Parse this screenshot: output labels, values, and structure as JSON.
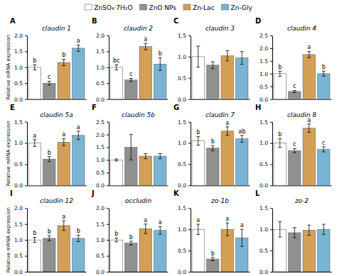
{
  "chart_data": [
    {
      "type": "bar",
      "title": "claudin 1",
      "label": "A",
      "ylabel": "Relative mRNA expression",
      "legend": "top",
      "ylim": [
        0,
        2.0
      ],
      "yticks": [
        {
          "value": 0.0,
          "label": "0.0"
        },
        0.5,
        {
          "value": 1.0,
          "label": "1.0"
        },
        1.5,
        {
          "value": 2.0,
          "label": "2.0"
        }
      ],
      "tick_labels": "y",
      "series": [
        {
          "name": "ZnSO₄⋅7H₂O",
          "color": "#ffffff",
          "values": [
            1.0
          ],
          "errors": [
            0.08
          ],
          "annotations": [
            "b"
          ]
        },
        {
          "name": "ZnO NPs",
          "color": "#909090",
          "values": [
            0.5
          ],
          "errors": [
            0.06
          ],
          "annotations": [
            "c"
          ]
        },
        {
          "name": "Zn-Lac",
          "color": "#d4a056",
          "values": [
            1.15
          ],
          "errors": [
            0.1
          ],
          "annotations": [
            "b"
          ]
        },
        {
          "name": "Zn-Gly",
          "color": "#7ab4d4",
          "values": [
            1.6
          ],
          "errors": [
            0.1
          ],
          "annotations": [
            "a"
          ]
        }
      ]
    },
    {
      "type": "bar",
      "title": "claudin 2",
      "label": "B",
      "ylim": [
        0,
        2.0
      ],
      "yticks": [
        {
          "value": 0.0,
          "label": "0.0"
        },
        0.5,
        {
          "value": 1.0,
          "label": "1.0"
        },
        1.5,
        {
          "value": 2.0,
          "label": "2.0"
        }
      ],
      "tick_labels": "y",
      "series": [
        {
          "name": "ZnSO₄⋅7H₂O",
          "color": "#ffffff",
          "values": [
            1.0
          ],
          "errors": [
            0.08
          ],
          "annotations": [
            "bc"
          ]
        },
        {
          "name": "ZnO NPs",
          "color": "#909090",
          "values": [
            0.6
          ],
          "errors": [
            0.05
          ],
          "annotations": [
            "c"
          ]
        },
        {
          "name": "Zn-Lac",
          "color": "#d4a056",
          "values": [
            1.65
          ],
          "errors": [
            0.1
          ],
          "annotations": [
            "a"
          ]
        },
        {
          "name": "Zn-Gly",
          "color": "#7ab4d4",
          "values": [
            1.1
          ],
          "errors": [
            0.2
          ],
          "annotations": [
            "b"
          ]
        }
      ]
    },
    {
      "type": "bar",
      "title": "claudin 3",
      "label": "C",
      "ylim": [
        0,
        1.5
      ],
      "yticks": [
        {
          "value": 0.0,
          "label": "0.0"
        },
        0.5,
        {
          "value": 1.0,
          "label": "1.0"
        },
        1.5
      ],
      "tick_labels": "y",
      "series": [
        {
          "name": "ZnSO₄⋅7H₂O",
          "color": "#ffffff",
          "values": [
            1.0
          ],
          "errors": [
            0.25
          ]
        },
        {
          "name": "ZnO NPs",
          "color": "#909090",
          "values": [
            0.8
          ],
          "errors": [
            0.08
          ]
        },
        {
          "name": "Zn-Lac",
          "color": "#d4a056",
          "values": [
            1.02
          ],
          "errors": [
            0.12
          ]
        },
        {
          "name": "Zn-Gly",
          "color": "#7ab4d4",
          "values": [
            0.97
          ],
          "errors": [
            0.15
          ]
        }
      ]
    },
    {
      "type": "bar",
      "title": "claudin 4",
      "label": "D",
      "ylim": [
        0,
        2.5
      ],
      "yticks": [
        {
          "value": 0.0,
          "label": "0.0"
        },
        0.5,
        {
          "value": 1.0,
          "label": "1.0"
        },
        1.5,
        {
          "value": 2.0,
          "label": "2.0"
        },
        2.5
      ],
      "tick_labels": "y",
      "series": [
        {
          "name": "ZnSO₄⋅7H₂O",
          "color": "#ffffff",
          "values": [
            1.0
          ],
          "errors": [
            0.1
          ],
          "annotations": [
            "b"
          ]
        },
        {
          "name": "ZnO NPs",
          "color": "#909090",
          "values": [
            0.3
          ],
          "errors": [
            0.04
          ],
          "annotations": [
            "c"
          ]
        },
        {
          "name": "Zn-Lac",
          "color": "#d4a056",
          "values": [
            1.75
          ],
          "errors": [
            0.12
          ],
          "annotations": [
            "a"
          ]
        },
        {
          "name": "Zn-Gly",
          "color": "#7ab4d4",
          "values": [
            1.0
          ],
          "errors": [
            0.1
          ],
          "annotations": [
            "b"
          ]
        }
      ]
    },
    {
      "type": "bar",
      "title": "claudin 5a",
      "label": "E",
      "ylabel": "Relative mRNA expression",
      "ylim": [
        0,
        1.5
      ],
      "yticks": [
        {
          "value": 0.0,
          "label": "0.0"
        },
        0.5,
        {
          "value": 1.0,
          "label": "1.0"
        },
        1.5
      ],
      "tick_labels": "y",
      "series": [
        {
          "name": "ZnSO₄⋅7H₂O",
          "color": "#ffffff",
          "values": [
            1.0
          ],
          "errors": [
            0.08
          ],
          "annotations": [
            "a"
          ]
        },
        {
          "name": "ZnO NPs",
          "color": "#909090",
          "values": [
            0.62
          ],
          "errors": [
            0.06
          ],
          "annotations": [
            "b"
          ]
        },
        {
          "name": "Zn-Lac",
          "color": "#d4a056",
          "values": [
            1.02
          ],
          "errors": [
            0.08
          ],
          "annotations": [
            "a"
          ]
        },
        {
          "name": "Zn-Gly",
          "color": "#7ab4d4",
          "values": [
            1.18
          ],
          "errors": [
            0.1
          ],
          "annotations": [
            "a"
          ]
        }
      ]
    },
    {
      "type": "bar",
      "title": "claudin 5b",
      "label": "F",
      "ylim": [
        0,
        2.5
      ],
      "yticks": [
        {
          "value": 0.0,
          "label": "0.0"
        },
        0.5,
        {
          "value": 1.0,
          "label": "1.0"
        },
        1.5,
        {
          "value": 2.0,
          "label": "2.0"
        },
        2.5
      ],
      "tick_labels": "y",
      "series": [
        {
          "name": "ZnSO₄⋅7H₂O",
          "color": "#ffffff",
          "values": [
            1.0
          ],
          "errors": [
            0.04
          ]
        },
        {
          "name": "ZnO NPs",
          "color": "#909090",
          "values": [
            1.5
          ],
          "errors": [
            0.5
          ]
        },
        {
          "name": "Zn-Lac",
          "color": "#d4a056",
          "values": [
            1.15
          ],
          "errors": [
            0.1
          ]
        },
        {
          "name": "Zn-Gly",
          "color": "#7ab4d4",
          "values": [
            1.15
          ],
          "errors": [
            0.1
          ]
        }
      ]
    },
    {
      "type": "bar",
      "title": "claudin 7",
      "label": "G",
      "ylim": [
        0,
        1.5
      ],
      "yticks": [
        {
          "value": 0.0,
          "label": "0.0"
        },
        0.5,
        {
          "value": 1.0,
          "label": "1.0"
        },
        1.5
      ],
      "tick_labels": "y",
      "series": [
        {
          "name": "ZnSO₄⋅7H₂O",
          "color": "#ffffff",
          "values": [
            1.05
          ],
          "errors": [
            0.1
          ],
          "annotations": [
            "b"
          ]
        },
        {
          "name": "ZnO NPs",
          "color": "#909090",
          "values": [
            0.88
          ],
          "errors": [
            0.06
          ],
          "annotations": [
            "b"
          ]
        },
        {
          "name": "Zn-Lac",
          "color": "#d4a056",
          "values": [
            1.28
          ],
          "errors": [
            0.1
          ],
          "annotations": [
            "a"
          ]
        },
        {
          "name": "Zn-Gly",
          "color": "#7ab4d4",
          "values": [
            1.1
          ],
          "errors": [
            0.08
          ],
          "annotations": [
            "ab"
          ]
        }
      ]
    },
    {
      "type": "bar",
      "title": "claudin 8",
      "label": "H",
      "ylim": [
        0,
        1.5
      ],
      "yticks": [
        {
          "value": 0.0,
          "label": "0.0"
        },
        0.5,
        {
          "value": 1.0,
          "label": "1.0"
        },
        1.5
      ],
      "tick_labels": "y",
      "series": [
        {
          "name": "ZnSO₄⋅7H₂O",
          "color": "#ffffff",
          "values": [
            1.0
          ],
          "errors": [
            0.1
          ],
          "annotations": [
            "b"
          ]
        },
        {
          "name": "ZnO NPs",
          "color": "#909090",
          "values": [
            0.82
          ],
          "errors": [
            0.05
          ],
          "annotations": [
            "c"
          ]
        },
        {
          "name": "Zn-Lac",
          "color": "#d4a056",
          "values": [
            1.35
          ],
          "errors": [
            0.1
          ],
          "annotations": [
            "a"
          ]
        },
        {
          "name": "Zn-Gly",
          "color": "#7ab4d4",
          "values": [
            0.85
          ],
          "errors": [
            0.06
          ],
          "annotations": [
            "c"
          ]
        }
      ]
    },
    {
      "type": "bar",
      "title": "claudin 12",
      "label": "I",
      "ylabel": "Relative mRNA expression",
      "ylim": [
        0,
        2.0
      ],
      "yticks": [
        {
          "value": 0.0,
          "label": "0.0"
        },
        0.5,
        {
          "value": 1.0,
          "label": "1.0"
        },
        1.5,
        {
          "value": 2.0,
          "label": "2.0"
        }
      ],
      "tick_labels": "y",
      "series": [
        {
          "name": "ZnSO₄⋅7H₂O",
          "color": "#ffffff",
          "values": [
            1.0
          ],
          "errors": [
            0.08
          ],
          "annotations": [
            "b"
          ]
        },
        {
          "name": "ZnO NPs",
          "color": "#909090",
          "values": [
            1.05
          ],
          "errors": [
            0.08
          ],
          "annotations": [
            "b"
          ]
        },
        {
          "name": "Zn-Lac",
          "color": "#d4a056",
          "values": [
            1.45
          ],
          "errors": [
            0.15
          ],
          "annotations": [
            "a"
          ]
        },
        {
          "name": "Zn-Gly",
          "color": "#7ab4d4",
          "values": [
            1.05
          ],
          "errors": [
            0.1
          ],
          "annotations": [
            "b"
          ]
        }
      ]
    },
    {
      "type": "bar",
      "title": "occludin",
      "label": "J",
      "ylim": [
        0,
        2.0
      ],
      "yticks": [
        {
          "value": 0.0,
          "label": "0.0"
        },
        0.5,
        {
          "value": 1.0,
          "label": "1.0"
        },
        1.5,
        {
          "value": 2.0,
          "label": "2.0"
        }
      ],
      "tick_labels": "y",
      "series": [
        {
          "name": "ZnSO₄⋅7H₂O",
          "color": "#ffffff",
          "values": [
            1.0
          ],
          "errors": [
            0.06
          ],
          "annotations": [
            "b"
          ]
        },
        {
          "name": "ZnO NPs",
          "color": "#909090",
          "values": [
            0.9
          ],
          "errors": [
            0.06
          ],
          "annotations": [
            "b"
          ]
        },
        {
          "name": "Zn-Lac",
          "color": "#d4a056",
          "values": [
            1.35
          ],
          "errors": [
            0.15
          ],
          "annotations": [
            "a"
          ]
        },
        {
          "name": "Zn-Gly",
          "color": "#7ab4d4",
          "values": [
            1.3
          ],
          "errors": [
            0.12
          ],
          "annotations": [
            "a"
          ]
        }
      ]
    },
    {
      "type": "bar",
      "title": "zo-1b",
      "label": "K",
      "ylim": [
        0,
        1.5
      ],
      "yticks": [
        {
          "value": 0.0,
          "label": "0.0"
        },
        0.5,
        {
          "value": 1.0,
          "label": "1.0"
        },
        1.5
      ],
      "tick_labels": "y",
      "series": [
        {
          "name": "ZnSO₄⋅7H₂O",
          "color": "#ffffff",
          "values": [
            1.0
          ],
          "errors": [
            0.12
          ],
          "annotations": [
            "a"
          ]
        },
        {
          "name": "ZnO NPs",
          "color": "#909090",
          "values": [
            0.3
          ],
          "errors": [
            0.04
          ],
          "annotations": [
            "b"
          ]
        },
        {
          "name": "Zn-Lac",
          "color": "#d4a056",
          "values": [
            1.0
          ],
          "errors": [
            0.15
          ],
          "annotations": [
            "a"
          ]
        },
        {
          "name": "Zn-Gly",
          "color": "#7ab4d4",
          "values": [
            0.8
          ],
          "errors": [
            0.2
          ],
          "annotations": [
            "a"
          ]
        }
      ]
    },
    {
      "type": "bar",
      "title": "zo-2",
      "label": "L",
      "ylim": [
        0,
        1.5
      ],
      "yticks": [
        {
          "value": 0.0,
          "label": "0.0"
        },
        0.5,
        {
          "value": 1.0,
          "label": "1.0"
        },
        1.5
      ],
      "tick_labels": "y",
      "series": [
        {
          "name": "ZnSO₄⋅7H₂O",
          "color": "#ffffff",
          "values": [
            1.0
          ],
          "errors": [
            0.18
          ]
        },
        {
          "name": "ZnO NPs",
          "color": "#909090",
          "values": [
            0.92
          ],
          "errors": [
            0.12
          ]
        },
        {
          "name": "Zn-Lac",
          "color": "#d4a056",
          "values": [
            0.98
          ],
          "errors": [
            0.12
          ]
        },
        {
          "name": "Zn-Gly",
          "color": "#7ab4d4",
          "values": [
            1.0
          ],
          "errors": [
            0.12
          ]
        }
      ]
    }
  ]
}
